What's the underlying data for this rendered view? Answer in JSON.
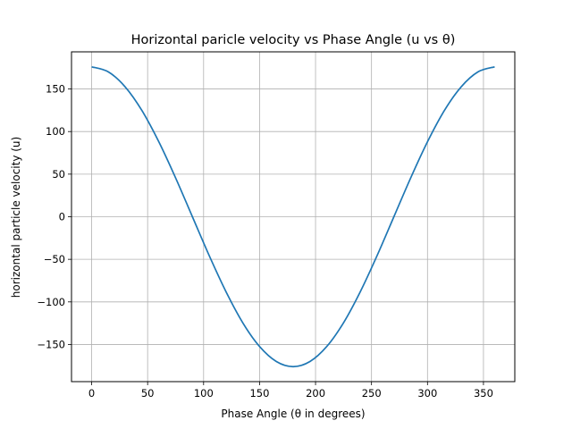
{
  "chart_data": {
    "type": "line",
    "title": "Horizontal paricle velocity vs Phase Angle (u vs θ)",
    "xlabel": "Phase Angle (θ in degrees)",
    "ylabel": "horizontal particle velocity (u)",
    "xlim": [
      -18,
      378
    ],
    "ylim": [
      -193.6,
      193.6
    ],
    "xticks": [
      0,
      50,
      100,
      150,
      200,
      250,
      300,
      350
    ],
    "yticks": [
      -150,
      -100,
      -50,
      0,
      50,
      100,
      150
    ],
    "xtick_labels": [
      "0",
      "50",
      "100",
      "150",
      "200",
      "250",
      "300",
      "350"
    ],
    "ytick_labels": [
      "−150",
      "−100",
      "−50",
      "0",
      "50",
      "100",
      "150"
    ],
    "grid": true,
    "series": [
      {
        "color": "#1f77b4",
        "x": [
          0,
          15,
          30,
          45,
          60,
          75,
          90,
          105,
          120,
          135,
          150,
          165,
          180,
          195,
          210,
          225,
          240,
          255,
          270,
          285,
          300,
          315,
          330,
          345,
          360
        ],
        "y": [
          176,
          170,
          152.4,
          124.5,
          88,
          45.6,
          0,
          -45.6,
          -88,
          -124.5,
          -152.4,
          -170,
          -176,
          -170,
          -152.4,
          -124.5,
          -88,
          -45.6,
          0,
          45.6,
          88,
          124.5,
          152.4,
          170,
          176
        ]
      }
    ]
  }
}
